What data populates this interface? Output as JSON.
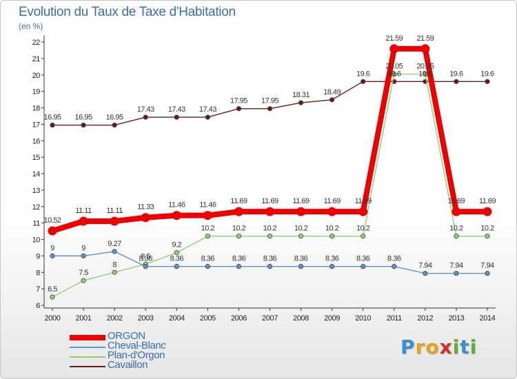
{
  "title": "Evolution du Taux de Taxe d'Habitation",
  "unit_label": "(en %)",
  "logo": {
    "letters": [
      "P",
      "r",
      "o",
      "x",
      "i",
      "t",
      "i"
    ],
    "colors": [
      "#3a8fd0",
      "#e8a020",
      "#e8a020",
      "#d03030",
      "#60b030",
      "#3a8fd0",
      "#60b030"
    ]
  },
  "chart_data": {
    "type": "line",
    "x": [
      "2000",
      "2001",
      "2002",
      "2003",
      "2004",
      "2005",
      "2006",
      "2007",
      "2008",
      "2009",
      "2010",
      "2011",
      "2012",
      "2013",
      "2014"
    ],
    "yticks": [
      "6",
      "7",
      "8",
      "9",
      "10",
      "11",
      "12",
      "13",
      "14",
      "15",
      "16",
      "17",
      "18",
      "19",
      "20",
      "21",
      "22"
    ],
    "ylim": [
      6,
      22
    ],
    "grid": false,
    "legend_position": "bottom-left",
    "series": [
      {
        "name": "Cavaillon",
        "color": "#6b1a1a",
        "values": [
          16.95,
          16.95,
          16.95,
          17.43,
          17.43,
          17.43,
          17.95,
          17.95,
          18.31,
          18.49,
          19.6,
          19.6,
          19.6,
          19.6,
          19.6
        ],
        "labels": [
          "16.95",
          "16.95",
          "16.95",
          "17.43",
          "17.43",
          "17.43",
          "17.95",
          "17.95",
          "18.31",
          "18.49",
          "19.6",
          "19.6",
          "19.6",
          "19.6",
          "19.6"
        ]
      },
      {
        "name": "Plan-d'Orgon",
        "color": "#90d070",
        "values": [
          6.5,
          7.5,
          8,
          8.5,
          9.2,
          10.2,
          10.2,
          10.2,
          10.2,
          10.2,
          10.2,
          20.05,
          20.05,
          10.2,
          10.2
        ],
        "labels": [
          "6.5",
          "7.5",
          "8",
          "8.5",
          "9.2",
          "10.2",
          "10.2",
          "10.2",
          "10.2",
          "10.2",
          "10.2",
          "20.05",
          "20.05",
          "10.2",
          "10.2"
        ]
      },
      {
        "name": "Cheval-Blanc",
        "color": "#5a94cc",
        "values": [
          9,
          9,
          9.27,
          8.36,
          8.36,
          8.36,
          8.36,
          8.36,
          8.36,
          8.36,
          8.36,
          8.36,
          7.94,
          7.94,
          7.94
        ],
        "labels": [
          "9",
          "9",
          "9.27",
          "8.36",
          "8.36",
          "8.36",
          "8.36",
          "8.36",
          "8.36",
          "8.36",
          "8.36",
          "8.36",
          "7.94",
          "7.94",
          "7.94"
        ]
      },
      {
        "name": "ORGON",
        "color": "#ee0000",
        "values": [
          10.52,
          11.11,
          11.11,
          11.33,
          11.46,
          11.46,
          11.69,
          11.69,
          11.69,
          11.69,
          11.69,
          21.59,
          21.59,
          11.69,
          11.69
        ],
        "labels": [
          "10.52",
          "11.11",
          "11.11",
          "11.33",
          "11.46",
          "11.46",
          "11.69",
          "11.69",
          "11.69",
          "11.69",
          "11.69",
          "21.59",
          "21.59",
          "11.69",
          "11.69"
        ]
      }
    ],
    "legend_order": [
      "ORGON",
      "Cheval-Blanc",
      "Plan-d'Orgon",
      "Cavaillon"
    ]
  }
}
